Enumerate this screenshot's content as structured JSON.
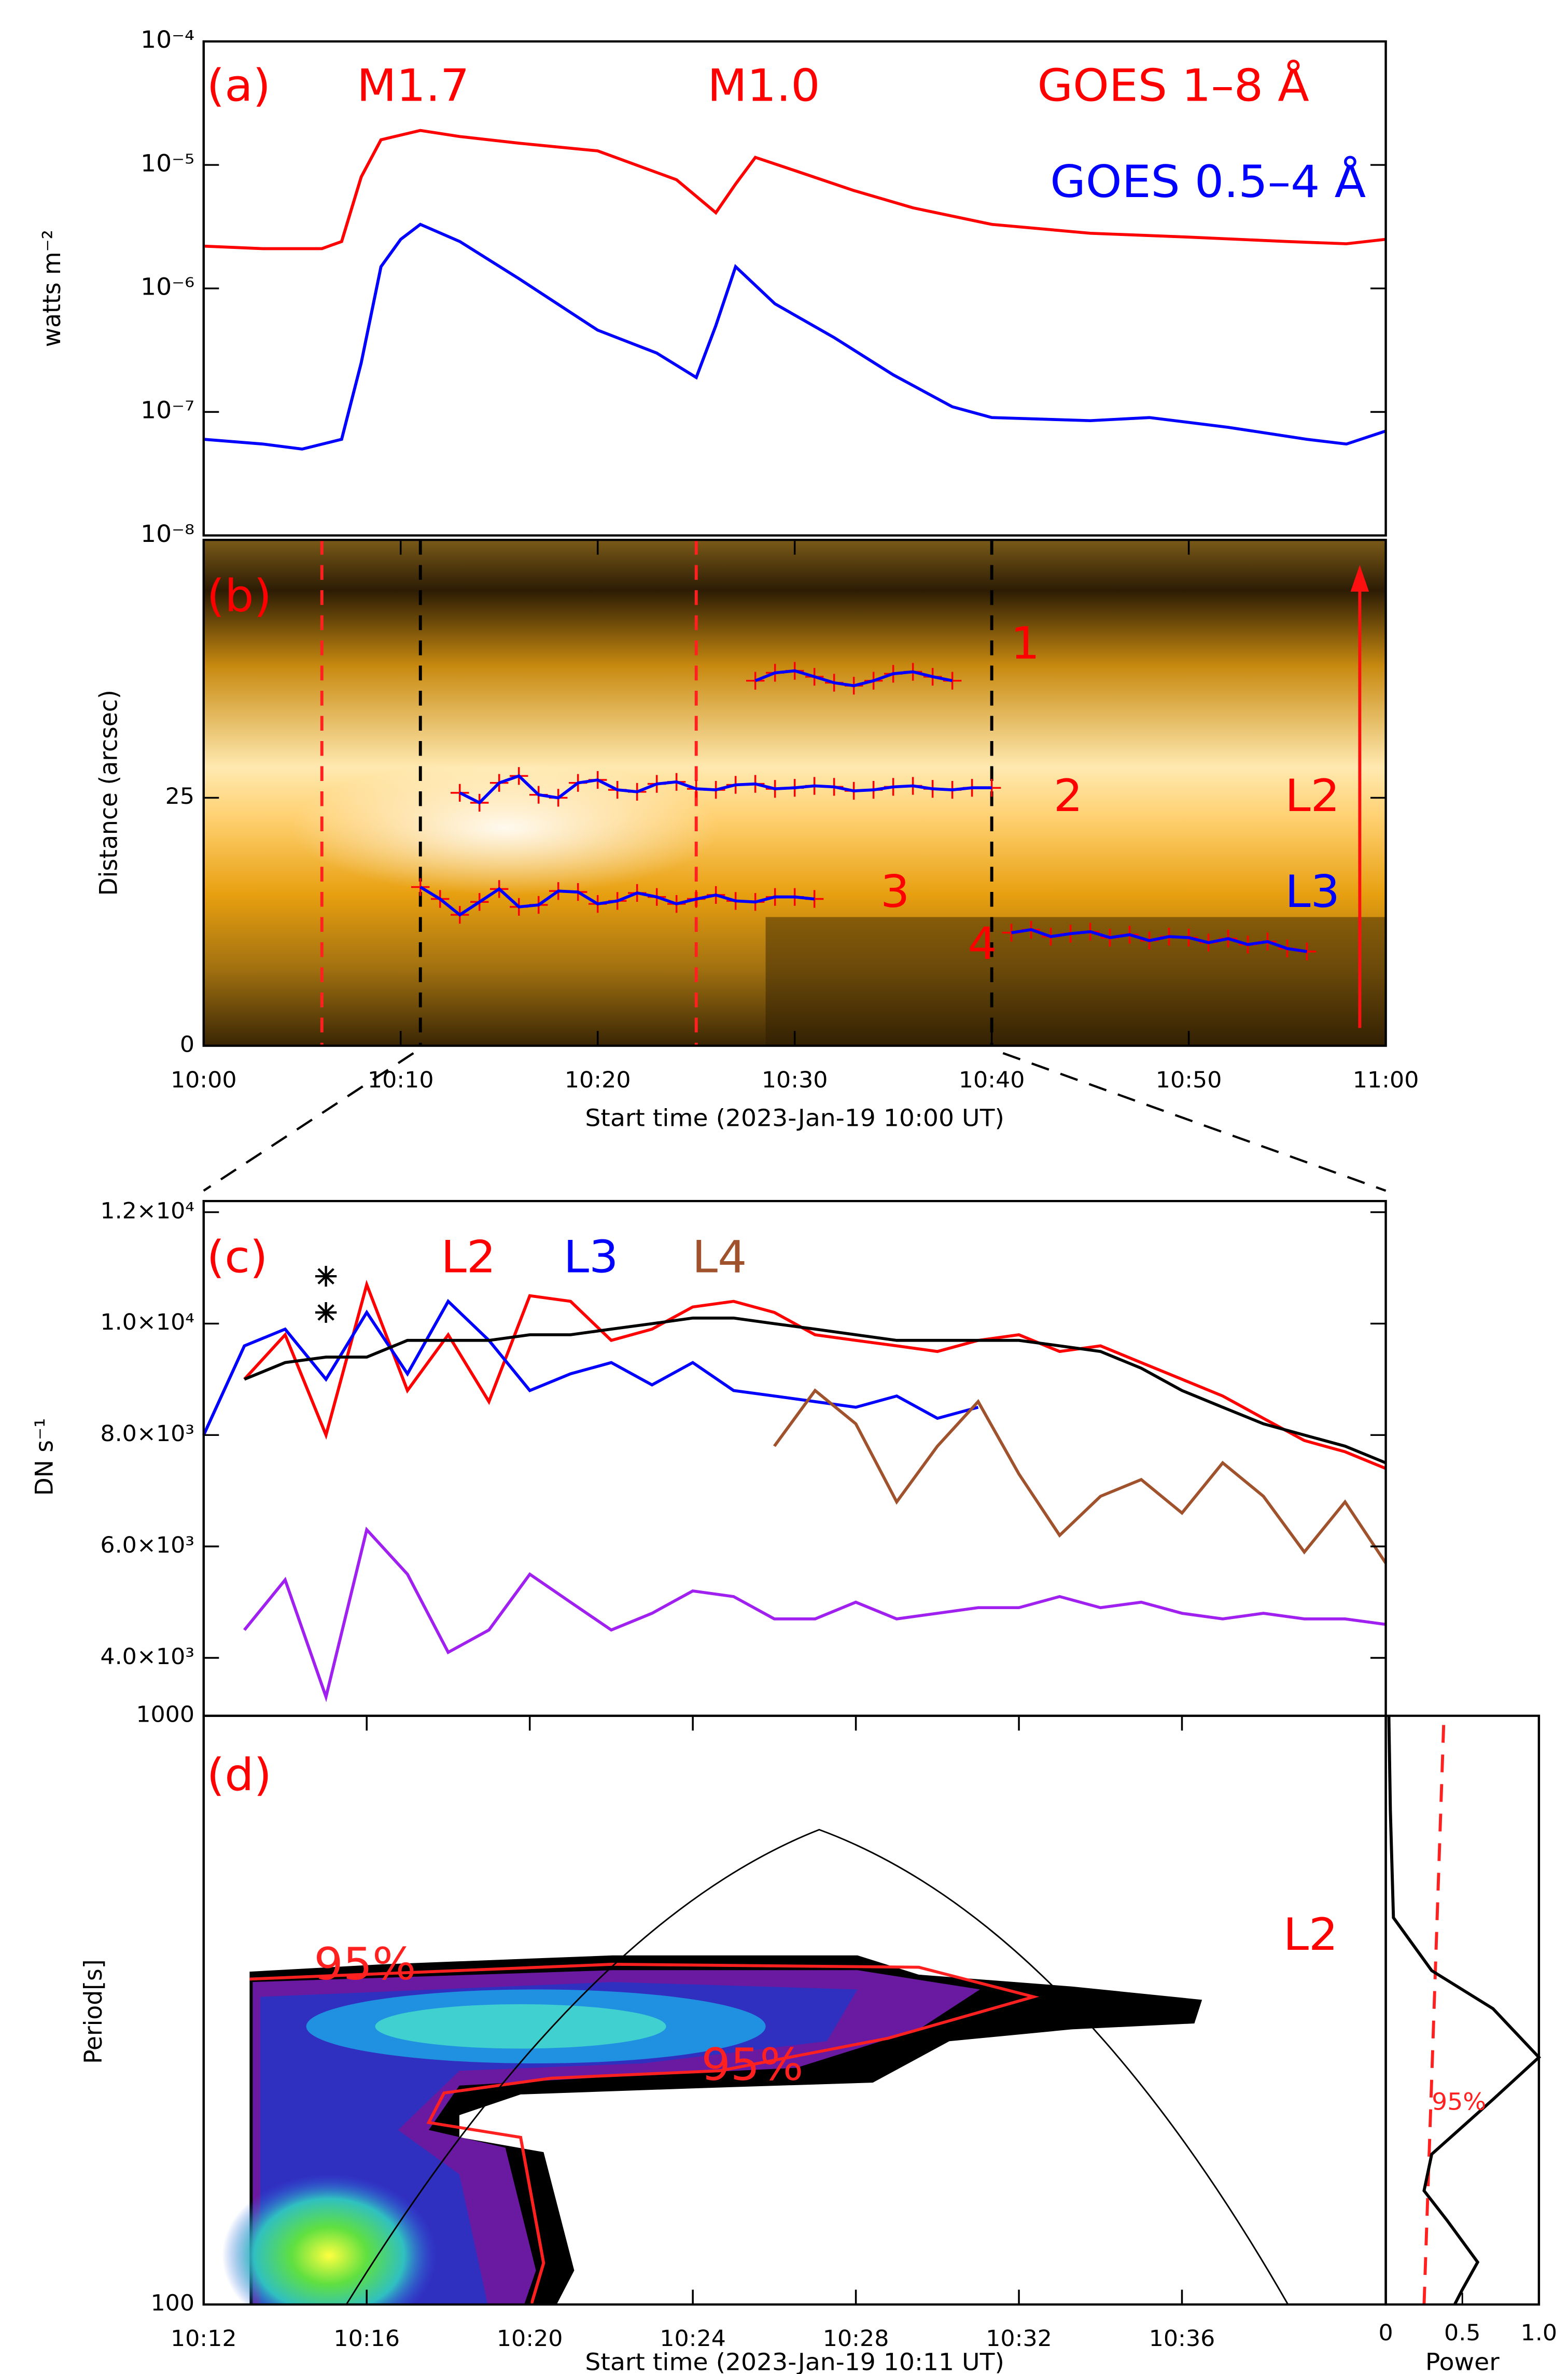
{
  "chart_data": [
    {
      "type": "line",
      "log_y": true,
      "ylabel": "watts m⁻²",
      "annotations": [
        "(a)",
        "M1.7",
        "M1.0"
      ],
      "xlim": [
        "10:00",
        "11:00"
      ],
      "ylim": [
        1e-08,
        0.0001
      ],
      "yticks": [
        {
          "value": 1e-08,
          "label": "10⁻⁸"
        },
        {
          "value": 1e-07,
          "label": "10⁻⁷"
        },
        {
          "value": 1e-06,
          "label": "10⁻⁶"
        },
        {
          "value": 1e-05,
          "label": "10⁻⁵"
        },
        {
          "value": 0.0001,
          "label": "10⁻⁴"
        }
      ],
      "series": [
        {
          "name": "GOES 1–8 Å",
          "color": "#ff0000",
          "x": [
            "10:00",
            "10:03",
            "10:06",
            "10:07",
            "10:08",
            "10:09",
            "10:11",
            "10:13",
            "10:16",
            "10:20",
            "10:24",
            "10:26",
            "10:27",
            "10:28",
            "10:30",
            "10:33",
            "10:36",
            "10:40",
            "10:45",
            "10:50",
            "10:55",
            "10:58",
            "11:00"
          ],
          "values": [
            2.2e-06,
            2.1e-06,
            2.1e-06,
            2.4e-06,
            8e-06,
            1.6e-05,
            1.9e-05,
            1.7e-05,
            1.5e-05,
            1.3e-05,
            7.6e-06,
            4.1e-06,
            7e-06,
            1.15e-05,
            9e-06,
            6.2e-06,
            4.5e-06,
            3.3e-06,
            2.8e-06,
            2.6e-06,
            2.4e-06,
            2.3e-06,
            2.5e-06
          ]
        },
        {
          "name": "GOES 0.5–4 Å",
          "color": "#0000ff",
          "x": [
            "10:00",
            "10:03",
            "10:05",
            "10:07",
            "10:08",
            "10:09",
            "10:10",
            "10:11",
            "10:13",
            "10:16",
            "10:20",
            "10:23",
            "10:25",
            "10:26",
            "10:27",
            "10:29",
            "10:32",
            "10:35",
            "10:38",
            "10:40",
            "10:45",
            "10:48",
            "10:52",
            "10:56",
            "10:58",
            "11:00"
          ],
          "values": [
            6e-08,
            5.5e-08,
            5e-08,
            6e-08,
            2.5e-07,
            1.5e-06,
            2.5e-06,
            3.3e-06,
            2.4e-06,
            1.2e-06,
            4.6e-07,
            3e-07,
            1.9e-07,
            5e-07,
            1.5e-06,
            7.5e-07,
            4e-07,
            2e-07,
            1.1e-07,
            9e-08,
            8.5e-08,
            9e-08,
            7.5e-08,
            6e-08,
            5.5e-08,
            7e-08
          ]
        }
      ]
    },
    {
      "type": "trace",
      "xlabel": "Start time (2023-Jan-19 10:00 UT)",
      "ylabel": "Distance (arcsec)",
      "annotations": [
        "(b)"
      ],
      "slit_labels": [
        {
          "text": "L2",
          "color": "#ff0000"
        },
        {
          "text": "L3",
          "color": "#0000ff"
        }
      ],
      "xlim": [
        "10:00",
        "11:00"
      ],
      "ylim": [
        0,
        51
      ],
      "yticks": [
        0,
        25
      ],
      "xticks": [
        "10:00",
        "10:10",
        "10:20",
        "10:30",
        "10:40",
        "10:50",
        "11:00"
      ],
      "vlines": [
        {
          "x": "10:06",
          "color": "#ff2020"
        },
        {
          "x": "10:11",
          "color": "#000000"
        },
        {
          "x": "10:25",
          "color": "#ff2020"
        },
        {
          "x": "10:40",
          "color": "#000000"
        }
      ],
      "series": [
        {
          "name": "1",
          "color": "#0000ff",
          "marker_color": "#ff0000",
          "x": [
            "10:28",
            "10:29",
            "10:30",
            "10:31",
            "10:32",
            "10:33",
            "10:34",
            "10:35",
            "10:36",
            "10:37",
            "10:38"
          ],
          "values": [
            36.8,
            37.6,
            37.8,
            37.2,
            36.6,
            36.3,
            36.8,
            37.5,
            37.7,
            37.2,
            36.8
          ]
        },
        {
          "name": "2",
          "color": "#0000ff",
          "marker_color": "#ff0000",
          "x": [
            "10:13",
            "10:14",
            "10:15",
            "10:16",
            "10:17",
            "10:18",
            "10:19",
            "10:20",
            "10:21",
            "10:22",
            "10:23",
            "10:24",
            "10:25",
            "10:26",
            "10:27",
            "10:28",
            "10:29",
            "10:30",
            "10:31",
            "10:32",
            "10:33",
            "10:34",
            "10:35",
            "10:36",
            "10:37",
            "10:38",
            "10:39",
            "10:40"
          ],
          "values": [
            25.5,
            24.5,
            26.5,
            27.2,
            25.3,
            25.0,
            26.5,
            26.8,
            25.8,
            25.6,
            26.4,
            26.6,
            25.9,
            25.8,
            26.3,
            26.4,
            25.9,
            26.0,
            26.2,
            26.1,
            25.7,
            25.8,
            26.1,
            26.2,
            25.9,
            25.8,
            26.0,
            26.0
          ]
        },
        {
          "name": "3",
          "color": "#0000ff",
          "marker_color": "#ff0000",
          "x": [
            "10:11",
            "10:12",
            "10:13",
            "10:14",
            "10:15",
            "10:16",
            "10:17",
            "10:18",
            "10:19",
            "10:20",
            "10:21",
            "10:22",
            "10:23",
            "10:24",
            "10:25",
            "10:26",
            "10:27",
            "10:28",
            "10:29",
            "10:30",
            "10:31"
          ],
          "values": [
            16.0,
            14.8,
            13.2,
            14.5,
            15.8,
            14.0,
            14.2,
            15.6,
            15.5,
            14.3,
            14.6,
            15.4,
            15.0,
            14.3,
            14.8,
            15.2,
            14.6,
            14.5,
            15.0,
            15.0,
            14.8
          ]
        },
        {
          "name": "4",
          "color": "#0000ff",
          "marker_color": "#ff0000",
          "x": [
            "10:41",
            "10:42",
            "10:43",
            "10:44",
            "10:45",
            "10:46",
            "10:47",
            "10:48",
            "10:49",
            "10:50",
            "10:51",
            "10:52",
            "10:53",
            "10:54",
            "10:55",
            "10:56"
          ],
          "values": [
            11.4,
            11.7,
            11.0,
            11.3,
            11.5,
            10.9,
            11.2,
            10.6,
            11.0,
            10.9,
            10.4,
            10.8,
            10.2,
            10.5,
            9.8,
            9.5
          ]
        }
      ]
    },
    {
      "type": "line",
      "ylabel": "DN s⁻¹",
      "annotations": [
        "(c)"
      ],
      "xlim": [
        "10:12",
        "10:41"
      ],
      "ylim": [
        2960,
        12200
      ],
      "yticks": [
        {
          "value": 4000,
          "label": "4.0×10³"
        },
        {
          "value": 6000,
          "label": "6.0×10³"
        },
        {
          "value": 8000,
          "label": "8.0×10³"
        },
        {
          "value": 10000,
          "label": "1.0×10⁴"
        },
        {
          "value": 12000,
          "label": "1.2×10⁴"
        }
      ],
      "stars": {
        "x": [
          "10:15",
          "10:15"
        ],
        "values": [
          10850,
          10200
        ]
      },
      "series": [
        {
          "name": "L2",
          "color": "#ff0000",
          "x": [
            "10:13",
            "10:14",
            "10:15",
            "10:16",
            "10:17",
            "10:18",
            "10:19",
            "10:20",
            "10:21",
            "10:22",
            "10:23",
            "10:24",
            "10:25",
            "10:26",
            "10:27",
            "10:28",
            "10:29",
            "10:30",
            "10:31",
            "10:32",
            "10:33",
            "10:34",
            "10:35",
            "10:36",
            "10:37",
            "10:38",
            "10:39",
            "10:40",
            "10:41"
          ],
          "values": [
            9000,
            9800,
            8000,
            10700,
            8800,
            9800,
            8600,
            10500,
            10400,
            9700,
            9900,
            10300,
            10400,
            10200,
            9800,
            9700,
            9600,
            9500,
            9700,
            9800,
            9500,
            9600,
            9300,
            9000,
            8700,
            8300,
            7900,
            7700,
            7400
          ]
        },
        {
          "name": "L3",
          "color": "#0000ff",
          "x": [
            "10:12",
            "10:13",
            "10:14",
            "10:15",
            "10:16",
            "10:17",
            "10:18",
            "10:19",
            "10:20",
            "10:21",
            "10:22",
            "10:23",
            "10:24",
            "10:25",
            "10:26",
            "10:27",
            "10:28",
            "10:29",
            "10:30",
            "10:31"
          ],
          "values": [
            8000,
            9600,
            9900,
            9000,
            10200,
            9100,
            10400,
            9700,
            8800,
            9100,
            9300,
            8900,
            9300,
            8800,
            8700,
            8600,
            8500,
            8700,
            8300,
            8500
          ]
        },
        {
          "name": "L4",
          "color": "#a0522d",
          "x": [
            "10:26",
            "10:27",
            "10:28",
            "10:29",
            "10:30",
            "10:31",
            "10:32",
            "10:33",
            "10:34",
            "10:35",
            "10:36",
            "10:37",
            "10:38",
            "10:39",
            "10:40",
            "10:41"
          ],
          "values": [
            7800,
            8800,
            8200,
            6800,
            7800,
            8600,
            7300,
            6200,
            6900,
            7200,
            6600,
            7500,
            6900,
            5900,
            6800,
            5700
          ]
        },
        {
          "color": "#000000",
          "x": [
            "10:13",
            "10:14",
            "10:15",
            "10:16",
            "10:17",
            "10:18",
            "10:19",
            "10:20",
            "10:21",
            "10:22",
            "10:23",
            "10:24",
            "10:25",
            "10:26",
            "10:27",
            "10:28",
            "10:29",
            "10:30",
            "10:31",
            "10:32",
            "10:33",
            "10:34",
            "10:35",
            "10:36",
            "10:37",
            "10:38",
            "10:39",
            "10:40",
            "10:41"
          ],
          "values": [
            9000,
            9300,
            9400,
            9400,
            9700,
            9700,
            9700,
            9800,
            9800,
            9900,
            10000,
            10100,
            10100,
            10000,
            9900,
            9800,
            9700,
            9700,
            9700,
            9700,
            9600,
            9500,
            9200,
            8800,
            8500,
            8200,
            8000,
            7800,
            7500
          ]
        },
        {
          "color": "#a020f0",
          "x": [
            "10:13",
            "10:14",
            "10:15",
            "10:16",
            "10:17",
            "10:18",
            "10:19",
            "10:20",
            "10:21",
            "10:22",
            "10:23",
            "10:24",
            "10:25",
            "10:26",
            "10:27",
            "10:28",
            "10:29",
            "10:30",
            "10:31",
            "10:32",
            "10:33",
            "10:34",
            "10:35",
            "10:36",
            "10:37",
            "10:38",
            "10:39",
            "10:40",
            "10:41"
          ],
          "values": [
            4500,
            5400,
            3300,
            6300,
            5500,
            4100,
            4500,
            5500,
            5000,
            4500,
            4800,
            5200,
            5100,
            4700,
            4700,
            5000,
            4700,
            4800,
            4900,
            4900,
            5100,
            4900,
            5000,
            4800,
            4700,
            4800,
            4700,
            4700,
            4600
          ]
        }
      ]
    },
    {
      "type": "wavelet",
      "log_y": true,
      "xlabel": "Start time (2023-Jan-19 10:11 UT)",
      "ylabel": "Period[s]",
      "annotations": [
        "(d)",
        "L2",
        "95%",
        "95%"
      ],
      "xlim": [
        "10:12",
        "10:41"
      ],
      "ylim": [
        100,
        1000
      ],
      "yticks": [
        100,
        1000
      ],
      "xticks": [
        "10:12",
        "10:16",
        "10:20",
        "10:24",
        "10:28",
        "10:32",
        "10:36"
      ]
    },
    {
      "type": "power",
      "log_y": true,
      "xlabel": "Power",
      "annotations": [
        "95%"
      ],
      "xlim": [
        0,
        1
      ],
      "ylim": [
        100,
        1000
      ],
      "xticks": [
        0,
        0.5,
        {
          "value": 1,
          "label": "1.0"
        }
      ],
      "periods": [
        1000,
        690,
        454,
        369,
        318,
        263,
        223,
        180,
        156,
        139,
        118,
        106,
        100
      ],
      "values": [
        0.02,
        0.03,
        0.05,
        0.3,
        0.7,
        1.0,
        0.7,
        0.3,
        0.25,
        0.4,
        0.6,
        0.5,
        0.45
      ],
      "significance": {
        "periods": [
          100,
          1000
        ],
        "values": [
          0.25,
          0.38
        ]
      }
    }
  ]
}
